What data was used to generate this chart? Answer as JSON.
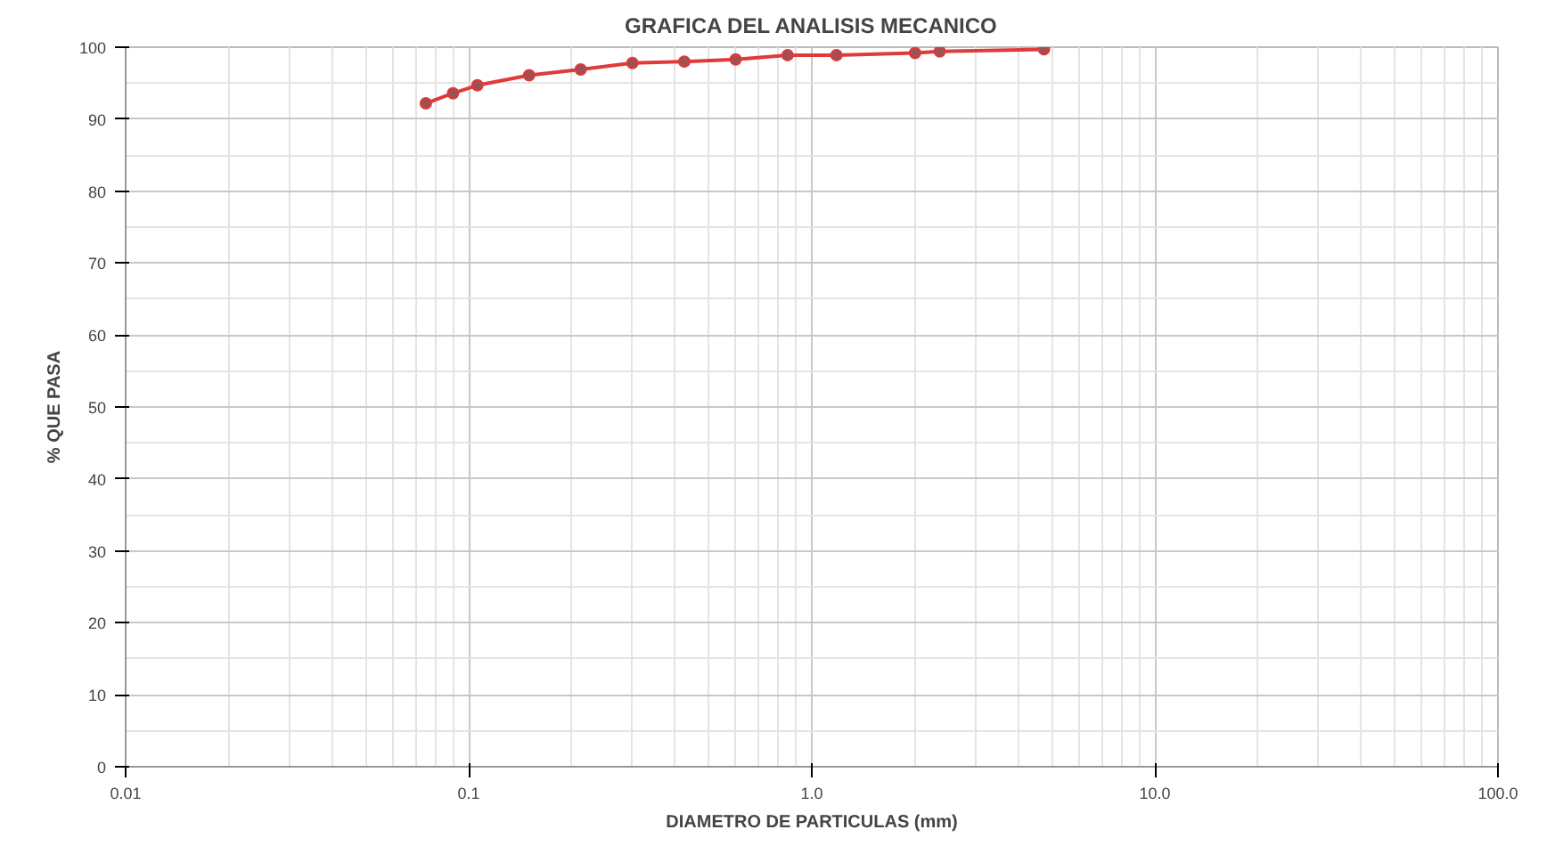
{
  "chart_data": {
    "type": "line",
    "title": "GRAFICA DEL ANALISIS MECANICO",
    "xlabel": "DIAMETRO DE PARTICULAS (mm)",
    "ylabel": "% QUE PASA",
    "log": "x",
    "grid": true,
    "marker": "circle",
    "line_style": "solid",
    "x": [
      0.075,
      0.09,
      0.106,
      0.15,
      0.212,
      0.3,
      0.425,
      0.6,
      0.85,
      1.18,
      2.0,
      2.36,
      4.75
    ],
    "series": [
      {
        "color": "#e03a3a",
        "values": [
          92.2,
          93.6,
          94.7,
          96.1,
          96.9,
          97.8,
          98.0,
          98.3,
          98.9,
          98.9,
          99.2,
          99.4,
          99.7
        ]
      }
    ],
    "xlim": [
      0.01,
      100
    ],
    "ylim": [
      0,
      100
    ],
    "xticks": [
      {
        "value": 0.01,
        "label": "0.01"
      },
      {
        "value": 0.1,
        "label": "0.1"
      },
      {
        "value": 1,
        "label": "1.0"
      },
      {
        "value": 10,
        "label": "10.0"
      },
      {
        "value": 100,
        "label": "100.0"
      }
    ],
    "yticks": [
      0,
      10,
      20,
      30,
      40,
      50,
      60,
      70,
      80,
      90,
      100
    ]
  }
}
